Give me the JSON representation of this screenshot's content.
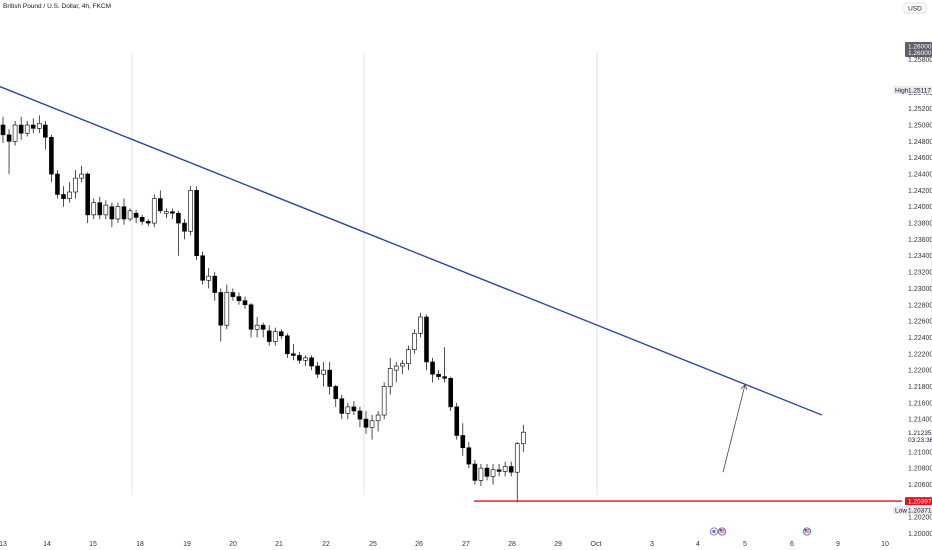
{
  "header": {
    "symbol": "British Pound / U.S. Dollar, 4h, FKCM"
  },
  "price_scale": {
    "currency": "USD",
    "labels": [
      "1.25800",
      "1.25400",
      "1.25200",
      "1.25000",
      "1.24800",
      "1.24600",
      "1.24400",
      "1.24200",
      "1.24000",
      "1.23800",
      "1.23600",
      "1.23400",
      "1.23200",
      "1.23000",
      "1.22800",
      "1.22600",
      "1.22400",
      "1.22200",
      "1.22000",
      "1.21800",
      "1.21600",
      "1.21400",
      "1.21000",
      "1.20800",
      "1.20600",
      "1.20200",
      "1.20000"
    ],
    "tag_top": {
      "a": "1.26000",
      "b": "1.26000"
    },
    "high": {
      "label": "High",
      "value": "1.25117"
    },
    "current": {
      "value": "1.21235",
      "countdown": "03:23:36"
    },
    "support_tag": "1.20397",
    "low": {
      "label": "Low",
      "value": "1.20371"
    }
  },
  "time_scale": {
    "labels": [
      "13",
      "14",
      "15",
      "18",
      "19",
      "20",
      "21",
      "22",
      "25",
      "26",
      "27",
      "28",
      "29",
      "Oct",
      "3",
      "4",
      "5",
      "6",
      "9",
      "10"
    ]
  },
  "colors": {
    "trendline": "#1f3fa0",
    "support": "#e0141e",
    "candle_up": "#ffffff",
    "candle_down": "#000000",
    "tag_dark": "#131722",
    "tag_red": "#e0141e"
  },
  "events": {
    "icons": [
      "calendar-event-icon",
      "us-flag-icon",
      "us-flag-icon"
    ]
  },
  "chart_data": {
    "type": "candlestick",
    "title": "British Pound / U.S. Dollar, 4h, FKCM",
    "y_unit": "USD",
    "ylim": [
      1.2,
      1.262
    ],
    "x_labels": [
      "13",
      "14",
      "15",
      "18",
      "19",
      "20",
      "21",
      "22",
      "25",
      "26",
      "27",
      "28",
      "29",
      "Oct",
      "3",
      "4",
      "5",
      "6",
      "9",
      "10"
    ],
    "grid": false,
    "candles": [
      [
        1.25,
        1.251,
        1.2478,
        1.2488
      ],
      [
        1.2488,
        1.2495,
        1.244,
        1.248
      ],
      [
        1.248,
        1.2505,
        1.2475,
        1.25
      ],
      [
        1.25,
        1.251,
        1.2482,
        1.249
      ],
      [
        1.249,
        1.2505,
        1.2486,
        1.25
      ],
      [
        1.25,
        1.2508,
        1.249,
        1.2496
      ],
      [
        1.2496,
        1.2512,
        1.249,
        1.2502
      ],
      [
        1.25,
        1.2505,
        1.247,
        1.2485
      ],
      [
        1.2485,
        1.2488,
        1.243,
        1.244
      ],
      [
        1.244,
        1.2445,
        1.241,
        1.2415
      ],
      [
        1.2415,
        1.2425,
        1.24,
        1.241
      ],
      [
        1.241,
        1.243,
        1.2405,
        1.2418
      ],
      [
        1.2418,
        1.2445,
        1.241,
        1.2435
      ],
      [
        1.2435,
        1.245,
        1.243,
        1.244
      ],
      [
        1.244,
        1.2442,
        1.238,
        1.239
      ],
      [
        1.239,
        1.241,
        1.2385,
        1.2405
      ],
      [
        1.2405,
        1.2412,
        1.2385,
        1.239
      ],
      [
        1.239,
        1.2408,
        1.2385,
        1.2402
      ],
      [
        1.24,
        1.2405,
        1.2375,
        1.2385
      ],
      [
        1.2385,
        1.2405,
        1.238,
        1.24
      ],
      [
        1.24,
        1.241,
        1.2378,
        1.2385
      ],
      [
        1.2385,
        1.2398,
        1.2382,
        1.2395
      ],
      [
        1.2392,
        1.2396,
        1.238,
        1.2387
      ],
      [
        1.2387,
        1.239,
        1.2378,
        1.2382
      ],
      [
        1.2382,
        1.2385,
        1.2376,
        1.238
      ],
      [
        1.238,
        1.2415,
        1.2375,
        1.241
      ],
      [
        1.241,
        1.242,
        1.2392,
        1.2395
      ],
      [
        1.2392,
        1.2398,
        1.2386,
        1.2394
      ],
      [
        1.2394,
        1.2398,
        1.2385,
        1.2392
      ],
      [
        1.2392,
        1.2395,
        1.234,
        1.238
      ],
      [
        1.238,
        1.2385,
        1.236,
        1.237
      ],
      [
        1.237,
        1.2425,
        1.2365,
        1.242
      ],
      [
        1.242,
        1.2425,
        1.2335,
        1.234
      ],
      [
        1.234,
        1.2345,
        1.2305,
        1.231
      ],
      [
        1.231,
        1.2325,
        1.23,
        1.2315
      ],
      [
        1.2315,
        1.232,
        1.2285,
        1.2295
      ],
      [
        1.2295,
        1.23,
        1.2235,
        1.2255
      ],
      [
        1.2255,
        1.2305,
        1.225,
        1.2295
      ],
      [
        1.2295,
        1.23,
        1.2285,
        1.229
      ],
      [
        1.229,
        1.2295,
        1.228,
        1.2285
      ],
      [
        1.2285,
        1.229,
        1.2275,
        1.228
      ],
      [
        1.228,
        1.2282,
        1.224,
        1.225
      ],
      [
        1.225,
        1.2265,
        1.224,
        1.2255
      ],
      [
        1.2255,
        1.2258,
        1.224,
        1.225
      ],
      [
        1.2248,
        1.2255,
        1.223,
        1.2235
      ],
      [
        1.2235,
        1.2252,
        1.223,
        1.2247
      ],
      [
        1.2247,
        1.225,
        1.2238,
        1.2242
      ],
      [
        1.2242,
        1.2245,
        1.2215,
        1.222
      ],
      [
        1.222,
        1.2232,
        1.2212,
        1.2218
      ],
      [
        1.2218,
        1.2222,
        1.2208,
        1.2212
      ],
      [
        1.2212,
        1.2218,
        1.2205,
        1.2215
      ],
      [
        1.2215,
        1.2218,
        1.22,
        1.2205
      ],
      [
        1.2205,
        1.221,
        1.219,
        1.2195
      ],
      [
        1.2195,
        1.221,
        1.218,
        1.22
      ],
      [
        1.22,
        1.221,
        1.217,
        1.218
      ],
      [
        1.218,
        1.2182,
        1.2155,
        1.2165
      ],
      [
        1.2165,
        1.217,
        1.214,
        1.2147
      ],
      [
        1.2147,
        1.216,
        1.214,
        1.2155
      ],
      [
        1.2155,
        1.2162,
        1.2145,
        1.215
      ],
      [
        1.215,
        1.2155,
        1.213,
        1.214
      ],
      [
        1.214,
        1.215,
        1.2122,
        1.213
      ],
      [
        1.213,
        1.2145,
        1.2115,
        1.2138
      ],
      [
        1.2138,
        1.215,
        1.2125,
        1.2145
      ],
      [
        1.2145,
        1.2185,
        1.214,
        1.218
      ],
      [
        1.218,
        1.2215,
        1.217,
        1.2202
      ],
      [
        1.22,
        1.221,
        1.2185,
        1.2205
      ],
      [
        1.2205,
        1.2212,
        1.2195,
        1.2208
      ],
      [
        1.2208,
        1.223,
        1.22,
        1.2225
      ],
      [
        1.2225,
        1.225,
        1.222,
        1.2245
      ],
      [
        1.2245,
        1.227,
        1.224,
        1.2265
      ],
      [
        1.2265,
        1.2268,
        1.22,
        1.221
      ],
      [
        1.221,
        1.2215,
        1.2185,
        1.2195
      ],
      [
        1.2195,
        1.22,
        1.2188,
        1.2192
      ],
      [
        1.2192,
        1.2228,
        1.2185,
        1.219
      ],
      [
        1.219,
        1.2192,
        1.215,
        1.2155
      ],
      [
        1.2155,
        1.216,
        1.2115,
        1.212
      ],
      [
        1.212,
        1.2135,
        1.2095,
        1.2105
      ],
      [
        1.2105,
        1.2112,
        1.208,
        1.2085
      ],
      [
        1.2085,
        1.209,
        1.206,
        1.2065
      ],
      [
        1.2065,
        1.2085,
        1.2058,
        1.208
      ],
      [
        1.208,
        1.2085,
        1.2065,
        1.207
      ],
      [
        1.207,
        1.2085,
        1.206,
        1.2078
      ],
      [
        1.2078,
        1.2085,
        1.207,
        1.2076
      ],
      [
        1.2076,
        1.2088,
        1.207,
        1.2082
      ],
      [
        1.2082,
        1.2088,
        1.207,
        1.2075
      ],
      [
        1.2075,
        1.2112,
        1.2038,
        1.211
      ],
      [
        1.211,
        1.2133,
        1.21,
        1.2124
      ]
    ],
    "trendline": {
      "from": {
        "x": "13",
        "y": 1.2547
      },
      "to": {
        "x": "10",
        "y": 1.2145
      }
    },
    "support_line": {
      "y": 1.20397
    },
    "projection_arrow": {
      "from": 1.2075,
      "to": 1.2182
    },
    "high": 1.25117,
    "low": 1.20371,
    "current_price": 1.21235
  }
}
